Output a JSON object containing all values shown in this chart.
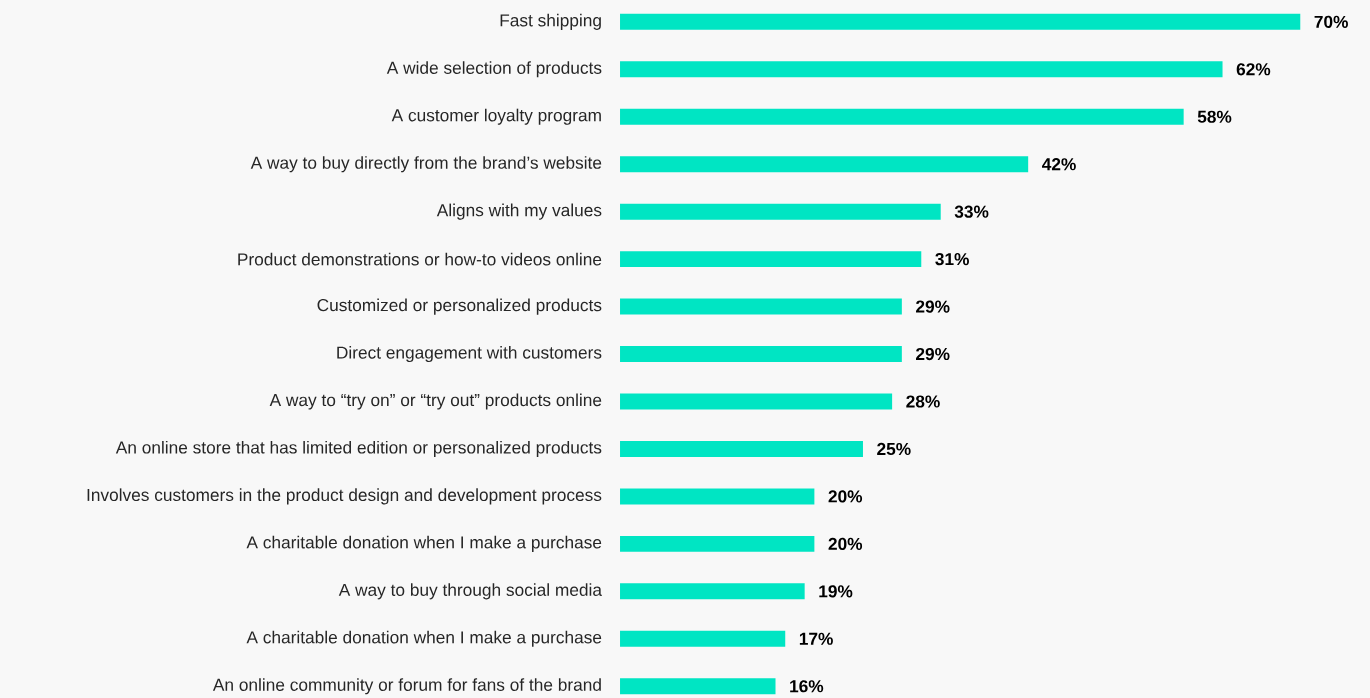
{
  "chart_data": {
    "type": "bar",
    "orientation": "horizontal",
    "categories": [
      "Fast shipping",
      "A wide selection of products",
      "A customer loyalty program",
      "A way to buy directly from the brand’s website",
      "Aligns with my values",
      "Product demonstrations or how-to videos online",
      "Customized or personalized products",
      "Direct engagement with customers",
      "A way to “try on” or “try out” products online",
      "An online store that has limited edition or personalized products",
      "Involves customers in the product design and development process",
      "A charitable donation when I make a purchase",
      "A way to buy through social media",
      "A charitable donation when I make a purchase",
      "An online community or forum for fans of the brand"
    ],
    "values": [
      70,
      62,
      58,
      42,
      33,
      31,
      29,
      29,
      28,
      25,
      20,
      20,
      19,
      17,
      16
    ],
    "value_labels": [
      "70%",
      "62%",
      "58%",
      "42%",
      "33%",
      "31%",
      "29%",
      "29%",
      "28%",
      "25%",
      "20%",
      "20%",
      "19%",
      "17%",
      "16%"
    ],
    "color": "#00e5c3"
  }
}
